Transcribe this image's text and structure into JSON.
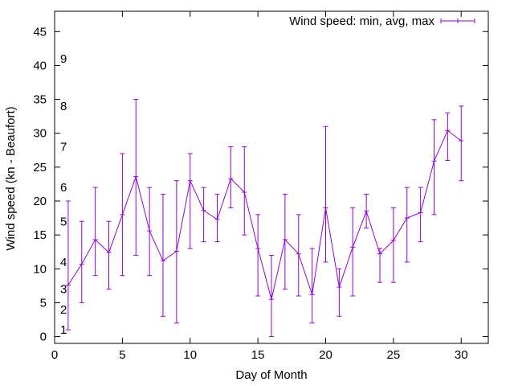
{
  "chart_data": {
    "type": "line",
    "title": "",
    "xlabel": "Day of Month",
    "ylabel": "Wind speed (kn - Beaufort)",
    "xlim": [
      0,
      32
    ],
    "ylim": [
      -1,
      48
    ],
    "xticks": [
      0,
      5,
      10,
      15,
      20,
      25,
      30
    ],
    "yticks": [
      0,
      5,
      10,
      15,
      20,
      25,
      30,
      35,
      40,
      45
    ],
    "grid": false,
    "legend_position": "top-right",
    "series_color": "#9400d3",
    "beaufort_scale": [
      {
        "label": "1",
        "knots": 1
      },
      {
        "label": "2",
        "knots": 4
      },
      {
        "label": "3",
        "knots": 7
      },
      {
        "label": "4",
        "knots": 11
      },
      {
        "label": "5",
        "knots": 17
      },
      {
        "label": "6",
        "knots": 22
      },
      {
        "label": "7",
        "knots": 28
      },
      {
        "label": "8",
        "knots": 34
      },
      {
        "label": "9",
        "knots": 41
      }
    ],
    "series": [
      {
        "name": "Wind speed: min, avg, max",
        "x": [
          1,
          2,
          3,
          4,
          5,
          6,
          7,
          8,
          9,
          10,
          11,
          12,
          13,
          14,
          15,
          16,
          17,
          18,
          19,
          20,
          21,
          22,
          23,
          24,
          25,
          26,
          27,
          28,
          29,
          30
        ],
        "avg": [
          7.6,
          10.7,
          14.3,
          12.4,
          18,
          23.6,
          15.6,
          11.2,
          12.6,
          23,
          18.6,
          17.3,
          23.3,
          21.3,
          13,
          5.5,
          14.3,
          12.2,
          6.2,
          19,
          7.3,
          13.2,
          18.5,
          12.2,
          14.2,
          17.5,
          18.3,
          25.9,
          30.4,
          28.9
        ],
        "min": [
          1,
          5,
          9,
          7,
          9,
          12,
          9,
          3,
          2,
          13,
          14,
          14,
          19,
          15,
          6,
          0,
          7,
          6,
          2,
          11,
          3,
          6,
          16,
          8,
          8,
          11,
          14,
          18,
          26,
          23
        ],
        "max": [
          20,
          17,
          22,
          17,
          27,
          35,
          22,
          21,
          23,
          27,
          22,
          21,
          28,
          28,
          18,
          12,
          21,
          18,
          13,
          31,
          10,
          19,
          21,
          13,
          19,
          22,
          22,
          32,
          33,
          34
        ]
      }
    ]
  }
}
